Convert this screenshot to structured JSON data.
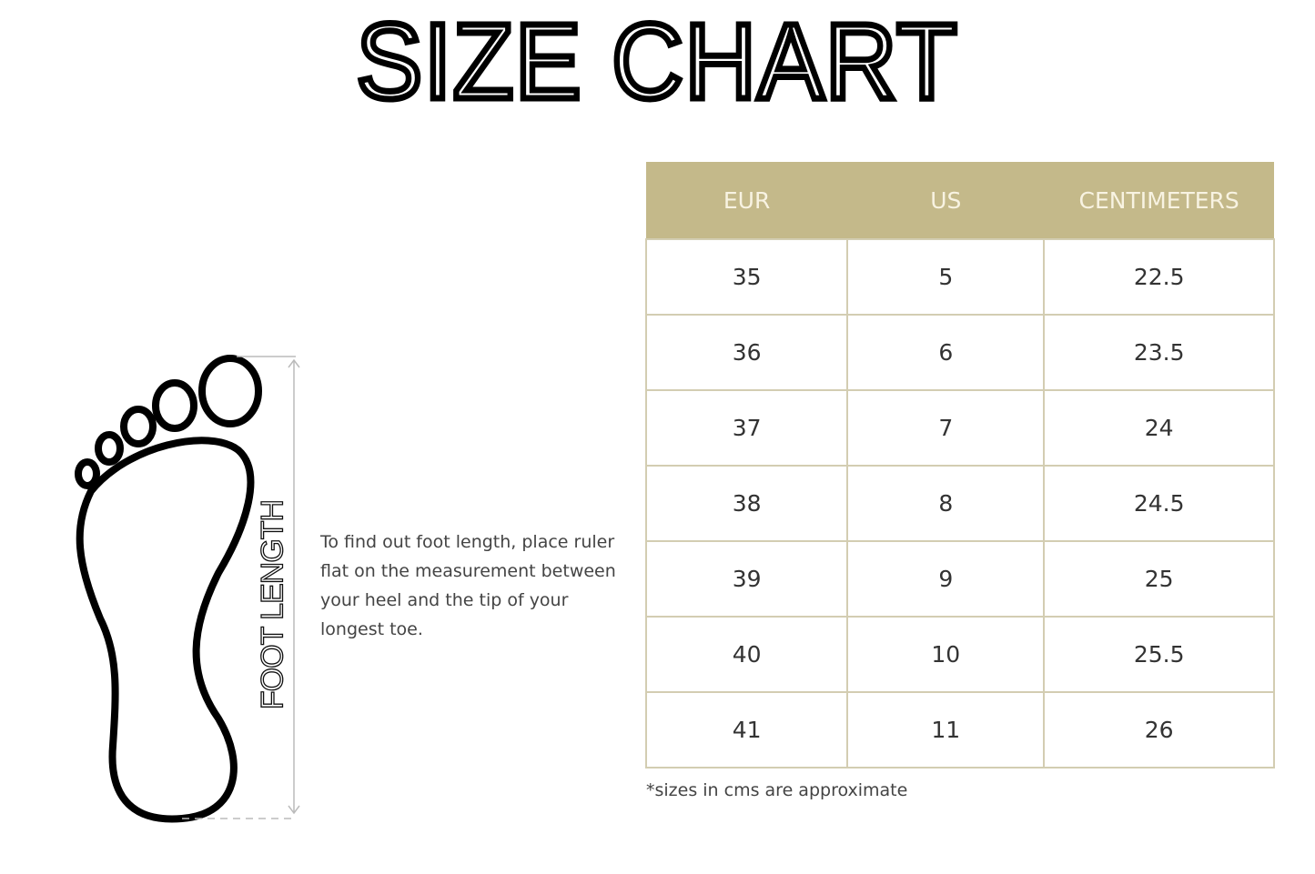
{
  "title": "SIZE CHART",
  "diagram": {
    "label": "FOOT LENGTH",
    "icon": "foot-outline-icon"
  },
  "instructions": "To find out foot length, place ruler flat on the measurement between your heel and the tip of your longest toe.",
  "table": {
    "headers": [
      "EUR",
      "US",
      "CENTIMETERS"
    ],
    "rows": [
      [
        "35",
        "5",
        "22.5"
      ],
      [
        "36",
        "6",
        "23.5"
      ],
      [
        "37",
        "7",
        "24"
      ],
      [
        "38",
        "8",
        "24.5"
      ],
      [
        "39",
        "9",
        "25"
      ],
      [
        "40",
        "10",
        "25.5"
      ],
      [
        "41",
        "11",
        "26"
      ]
    ],
    "header_color": "#c4b98a",
    "border_color": "#d3cdb2"
  },
  "note": "*sizes in cms are approximate"
}
